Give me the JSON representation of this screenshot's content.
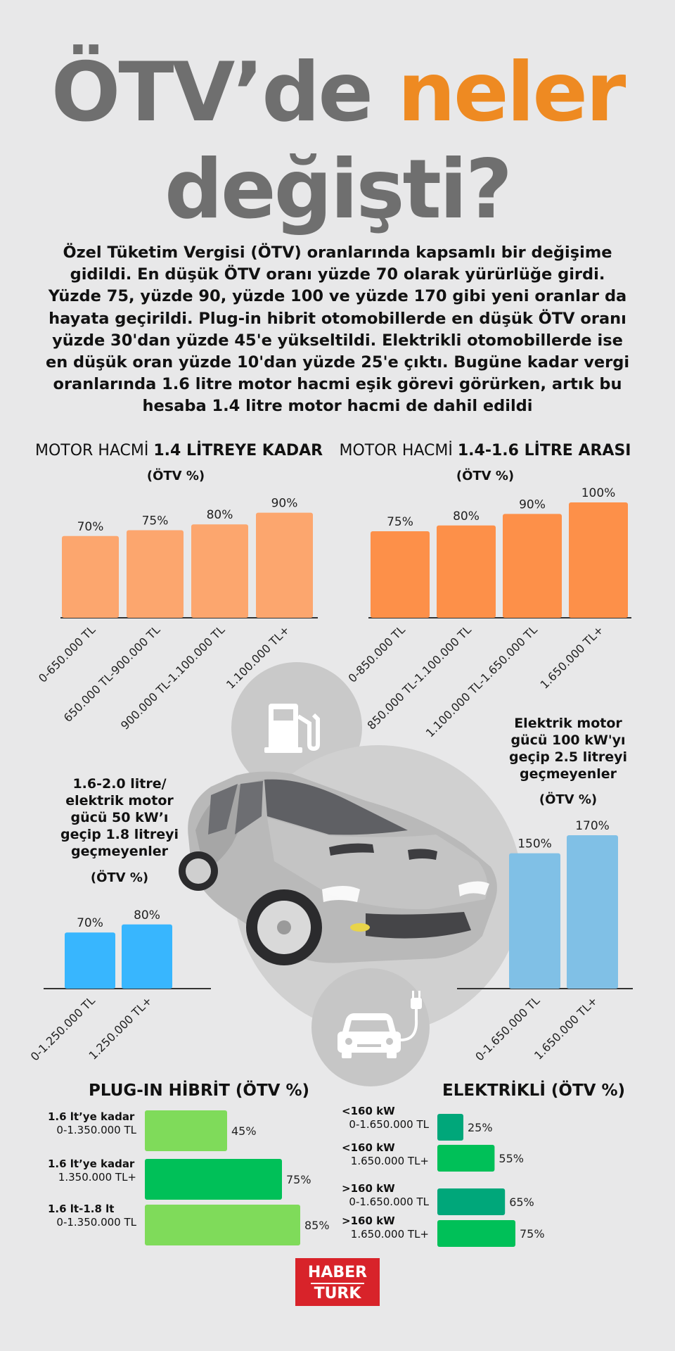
{
  "title": {
    "part1": "ÖTV’de",
    "highlight": "neler",
    "line2": "değişti?"
  },
  "intro": "Özel Tüketim Vergisi (ÖTV) oranlarında kapsamlı bir değişime gidildi. En düşük ÖTV oranı yüzde 70 olarak yürürlüğe girdi. Yüzde 75, yüzde 90, yüzde 100 ve yüzde 170 gibi yeni oranlar da hayata geçirildi. Plug-in hibrit otomobillerde en düşük ÖTV oranı yüzde 30'dan yüzde 45'e yükseltildi. Elektrikli otomobillerde ise en düşük oran yüzde 10'dan yüzde 25'e çıktı. Bugüne kadar vergi oranlarında 1.6 litre motor hacmi eşik görevi görürken, artık bu hesaba 1.4 litre motor hacmi de dahil edildi",
  "colors": {
    "title_gray": "#6f6f6f",
    "accent_orange": "#ee8a22",
    "chart1": "#fca66e",
    "chart2": "#fd9049",
    "chart3": "#38b6fe",
    "chart4": "#80c0e6",
    "green_light": "#7fdb5a",
    "green": "#00c058",
    "green_dark": "#00a77a",
    "logo_red": "#d8232a"
  },
  "icons": [
    "fuel-pump-icon",
    "electric-car-icon",
    "car-illustration"
  ],
  "chart_data": [
    {
      "type": "bar",
      "title_prefix": "MOTOR HACMİ ",
      "title_bold": "1.4 LİTREYE KADAR",
      "subtitle": "(ÖTV %)",
      "categories": [
        "0-650.000 TL",
        "650.000 TL-900.000 TL",
        "900.000 TL-1.100.000 TL",
        "1.100.000 TL+"
      ],
      "values": [
        70,
        75,
        80,
        90
      ],
      "labels": [
        "70%",
        "75%",
        "80%",
        "90%"
      ],
      "ylim": [
        0,
        100
      ]
    },
    {
      "type": "bar",
      "title_prefix": "MOTOR HACMİ ",
      "title_bold": "1.4-1.6 LİTRE ARASI",
      "subtitle": "(ÖTV %)",
      "categories": [
        "0-850.000 TL",
        "850.000 TL-1.100.000 TL",
        "1.100.000 TL-1.650.000 TL",
        "1.650.000 TL+"
      ],
      "values": [
        75,
        80,
        90,
        100
      ],
      "labels": [
        "75%",
        "80%",
        "90%",
        "100%"
      ],
      "ylim": [
        0,
        100
      ]
    },
    {
      "type": "bar",
      "title": "1.6-2.0 litre/ elektrik motor gücü 50 kW’ı geçip 1.8 litreyi geçmeyenler",
      "subtitle": "(ÖTV %)",
      "categories": [
        "0-1.250.000 TL",
        "1.250.000 TL+"
      ],
      "values": [
        70,
        80
      ],
      "labels": [
        "70%",
        "80%"
      ],
      "ylim": [
        0,
        100
      ]
    },
    {
      "type": "bar",
      "title": "Elektrik motor gücü 100 kW'yı geçip 2.5 litreyi geçmeyenler",
      "subtitle": "(ÖTV %)",
      "categories": [
        "0-1.650.000 TL",
        "1.650.000 TL+"
      ],
      "values": [
        150,
        170
      ],
      "labels": [
        "150%",
        "170%"
      ],
      "ylim": [
        0,
        170
      ]
    },
    {
      "type": "bar",
      "orientation": "horizontal",
      "title": "PLUG-IN HİBRİT (ÖTV %)",
      "categories": [
        {
          "bold": "1.6 lt’ye kadar",
          "sub": "0-1.350.000 TL"
        },
        {
          "bold": "1.6 lt’ye kadar",
          "sub": "1.350.000 TL+"
        },
        {
          "bold": "1.6 lt-1.8 lt",
          "sub": "0-1.350.000 TL"
        }
      ],
      "values": [
        45,
        75,
        85
      ],
      "labels": [
        "45%",
        "75%",
        "85%"
      ]
    },
    {
      "type": "bar",
      "orientation": "horizontal",
      "title": "ELEKTRİKLİ (ÖTV %)",
      "categories": [
        {
          "bold": "<160 kW",
          "sub": "0-1.650.000 TL"
        },
        {
          "bold": "<160 kW",
          "sub": "1.650.000 TL+"
        },
        {
          "bold": ">160 kW",
          "sub": "0-1.650.000 TL"
        },
        {
          "bold": ">160 kW",
          "sub": "1.650.000 TL+"
        }
      ],
      "values": [
        25,
        55,
        65,
        75
      ],
      "labels": [
        "25%",
        "55%",
        "65%",
        "75%"
      ]
    }
  ],
  "logo": {
    "line1": "HABER",
    "line2": "TURK"
  }
}
